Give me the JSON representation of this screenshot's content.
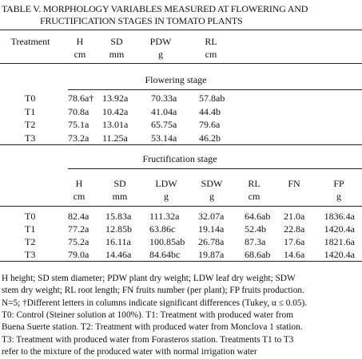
{
  "title_lines": [
    "TABLE V. MORPHOLOGY VARIABLES MEASURED AT FLOWERING AND",
    "FRUCTIFICATION STAGES IN TOMATO PLANTS"
  ],
  "flowering": {
    "header": [
      [
        "Treatment"
      ],
      [
        "H",
        "cm"
      ],
      [
        "SD",
        "mm"
      ],
      [
        "PDW",
        "g"
      ],
      [
        "RL",
        "cm"
      ]
    ],
    "label": "Flowering stage",
    "rows": [
      [
        "T0",
        "78.6a†",
        "13.92a",
        "70.33a",
        "57.8ab"
      ],
      [
        "T1",
        "70.8a",
        "10.42a",
        "41.04a",
        "44.4b"
      ],
      [
        "T2",
        "75.1a",
        "13.01a",
        "65.75a",
        "79.6a"
      ],
      [
        "T3",
        "73.2a",
        "11.25a",
        "53.14a",
        "46.2b"
      ]
    ]
  },
  "fructification": {
    "label": "Fructification stage",
    "header": [
      [
        "H",
        "cm"
      ],
      [
        "SD",
        "mm"
      ],
      [
        "LDW",
        "g"
      ],
      [
        "SDW",
        "g"
      ],
      [
        "RL",
        "cm"
      ],
      [
        "FN"
      ],
      [
        "FP",
        "g"
      ]
    ],
    "rows": [
      [
        "T0",
        "82.4a",
        "15.83a",
        "111.32a",
        "32.07a",
        "64.6ab",
        "21.0a",
        "1836.4a"
      ],
      [
        "T1",
        "77.2a",
        "12.85b",
        "63.86c",
        "19.14a",
        "52.4b",
        "22.8a",
        "1420.4a"
      ],
      [
        "T2",
        "75.2a",
        "16.11a",
        "100.85ab",
        "26.78a",
        "87.3a",
        "17.6a",
        "1821.6a"
      ],
      [
        "T3",
        "79.0a",
        "14.46a",
        "84.64bc",
        "19.87a",
        "68.6ab",
        "14.6a",
        "1420.4a"
      ]
    ]
  },
  "footnote": [
    "H height; SD stem diameter; PDW plant dry weight; LDW leaf dry weight; SDW",
    "stem dry weight; RL root length; FN fruits number (per plant); FP fruits production.",
    "N=5; †Different letters in columns indicate significant differences (Tukey, α ≤ 0.05).",
    "T0: Control (Steiner solution at 100%). T1: Treatment with produced water from",
    "Buena Suerte station. T2: Treatment with produced water from Monclova 1 station.",
    "T3: Treatment with produced water from Forasteros station. Treatments T1 to T3",
    "refer to the mixture of the produced water with normal irrigation water"
  ]
}
